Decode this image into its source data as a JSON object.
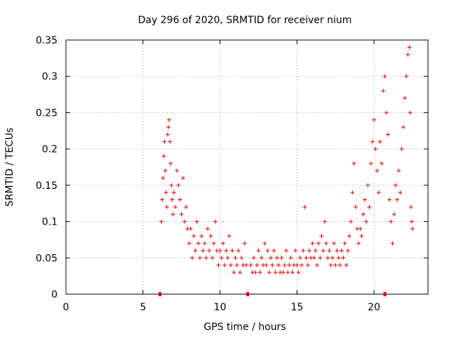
{
  "chart_data": {
    "type": "scatter",
    "title": "Day 296 of 2020, SRMTID for receiver nium",
    "xlabel": "GPS time / hours",
    "ylabel": "SRMTID / TECUs",
    "xlim": [
      0,
      23.5
    ],
    "ylim": [
      0,
      0.35
    ],
    "x_ticks": [
      0,
      5,
      10,
      15,
      20
    ],
    "y_ticks": [
      0,
      0.05,
      0.1,
      0.15,
      0.2,
      0.25,
      0.3,
      0.35
    ],
    "x_tick_labels": [
      "0",
      "5",
      "10",
      "15",
      "20"
    ],
    "y_tick_labels": [
      "0",
      "0.05",
      "0.1",
      "0.15",
      "0.2",
      "0.25",
      "0.3",
      "0.35"
    ],
    "grid": true,
    "marker": "+",
    "color": "#e00000",
    "axis_markers_x": [
      6.1,
      11.8,
      20.7
    ],
    "series": [
      {
        "name": "SRMTID",
        "points": [
          [
            6.2,
            0.1
          ],
          [
            6.25,
            0.13
          ],
          [
            6.3,
            0.16
          ],
          [
            6.35,
            0.19
          ],
          [
            6.4,
            0.21
          ],
          [
            6.45,
            0.17
          ],
          [
            6.5,
            0.14
          ],
          [
            6.55,
            0.12
          ],
          [
            6.6,
            0.22
          ],
          [
            6.65,
            0.23
          ],
          [
            6.7,
            0.24
          ],
          [
            6.75,
            0.21
          ],
          [
            6.8,
            0.18
          ],
          [
            6.85,
            0.15
          ],
          [
            6.9,
            0.13
          ],
          [
            6.95,
            0.11
          ],
          [
            7.0,
            0.14
          ],
          [
            7.1,
            0.12
          ],
          [
            7.2,
            0.17
          ],
          [
            7.3,
            0.15
          ],
          [
            7.4,
            0.13
          ],
          [
            7.5,
            0.11
          ],
          [
            7.6,
            0.16
          ],
          [
            7.7,
            0.1
          ],
          [
            7.8,
            0.12
          ],
          [
            7.9,
            0.09
          ],
          [
            8.0,
            0.07
          ],
          [
            8.1,
            0.09
          ],
          [
            8.2,
            0.05
          ],
          [
            8.3,
            0.08
          ],
          [
            8.4,
            0.06
          ],
          [
            8.5,
            0.1
          ],
          [
            8.6,
            0.07
          ],
          [
            8.7,
            0.05
          ],
          [
            8.8,
            0.08
          ],
          [
            8.9,
            0.06
          ],
          [
            9.0,
            0.07
          ],
          [
            9.1,
            0.05
          ],
          [
            9.2,
            0.09
          ],
          [
            9.3,
            0.06
          ],
          [
            9.4,
            0.08
          ],
          [
            9.5,
            0.05
          ],
          [
            9.6,
            0.07
          ],
          [
            9.7,
            0.1
          ],
          [
            9.8,
            0.06
          ],
          [
            9.9,
            0.04
          ],
          [
            10.0,
            0.06
          ],
          [
            10.1,
            0.05
          ],
          [
            10.2,
            0.07
          ],
          [
            10.3,
            0.04
          ],
          [
            10.4,
            0.06
          ],
          [
            10.5,
            0.05
          ],
          [
            10.6,
            0.08
          ],
          [
            10.7,
            0.04
          ],
          [
            10.8,
            0.06
          ],
          [
            10.9,
            0.03
          ],
          [
            11.0,
            0.05
          ],
          [
            11.1,
            0.04
          ],
          [
            11.2,
            0.06
          ],
          [
            11.3,
            0.03
          ],
          [
            11.4,
            0.05
          ],
          [
            11.5,
            0.04
          ],
          [
            11.6,
            0.07
          ],
          [
            11.7,
            0.04
          ],
          [
            12.0,
            0.04
          ],
          [
            12.1,
            0.03
          ],
          [
            12.2,
            0.05
          ],
          [
            12.3,
            0.03
          ],
          [
            12.4,
            0.04
          ],
          [
            12.5,
            0.06
          ],
          [
            12.6,
            0.03
          ],
          [
            12.7,
            0.05
          ],
          [
            12.8,
            0.04
          ],
          [
            12.9,
            0.07
          ],
          [
            13.0,
            0.04
          ],
          [
            13.1,
            0.06
          ],
          [
            13.2,
            0.03
          ],
          [
            13.3,
            0.05
          ],
          [
            13.4,
            0.04
          ],
          [
            13.5,
            0.06
          ],
          [
            13.6,
            0.03
          ],
          [
            13.7,
            0.05
          ],
          [
            13.8,
            0.04
          ],
          [
            13.9,
            0.03
          ],
          [
            14.0,
            0.05
          ],
          [
            14.1,
            0.03
          ],
          [
            14.2,
            0.04
          ],
          [
            14.3,
            0.06
          ],
          [
            14.4,
            0.03
          ],
          [
            14.5,
            0.04
          ],
          [
            14.6,
            0.05
          ],
          [
            14.7,
            0.03
          ],
          [
            14.8,
            0.04
          ],
          [
            14.9,
            0.06
          ],
          [
            15.0,
            0.04
          ],
          [
            15.1,
            0.03
          ],
          [
            15.2,
            0.05
          ],
          [
            15.3,
            0.04
          ],
          [
            15.4,
            0.06
          ],
          [
            15.5,
            0.12
          ],
          [
            15.6,
            0.05
          ],
          [
            15.7,
            0.04
          ],
          [
            15.8,
            0.06
          ],
          [
            15.9,
            0.05
          ],
          [
            16.0,
            0.07
          ],
          [
            16.1,
            0.05
          ],
          [
            16.2,
            0.06
          ],
          [
            16.3,
            0.04
          ],
          [
            16.4,
            0.07
          ],
          [
            16.5,
            0.05
          ],
          [
            16.6,
            0.08
          ],
          [
            16.7,
            0.06
          ],
          [
            16.8,
            0.1
          ],
          [
            16.9,
            0.07
          ],
          [
            17.0,
            0.05
          ],
          [
            17.1,
            0.06
          ],
          [
            17.2,
            0.04
          ],
          [
            17.3,
            0.05
          ],
          [
            17.4,
            0.07
          ],
          [
            17.5,
            0.04
          ],
          [
            17.6,
            0.06
          ],
          [
            17.7,
            0.05
          ],
          [
            17.8,
            0.04
          ],
          [
            17.9,
            0.06
          ],
          [
            18.0,
            0.05
          ],
          [
            18.1,
            0.07
          ],
          [
            18.2,
            0.04
          ],
          [
            18.3,
            0.06
          ],
          [
            18.4,
            0.08
          ],
          [
            18.5,
            0.1
          ],
          [
            18.6,
            0.14
          ],
          [
            18.7,
            0.18
          ],
          [
            18.8,
            0.12
          ],
          [
            18.9,
            0.09
          ],
          [
            19.0,
            0.07
          ],
          [
            19.1,
            0.09
          ],
          [
            19.2,
            0.08
          ],
          [
            19.3,
            0.11
          ],
          [
            19.4,
            0.13
          ],
          [
            19.5,
            0.1
          ],
          [
            19.6,
            0.15
          ],
          [
            19.7,
            0.12
          ],
          [
            19.8,
            0.18
          ],
          [
            19.9,
            0.21
          ],
          [
            20.0,
            0.24
          ],
          [
            20.1,
            0.2
          ],
          [
            20.2,
            0.17
          ],
          [
            20.3,
            0.14
          ],
          [
            20.4,
            0.21
          ],
          [
            20.5,
            0.18
          ],
          [
            20.6,
            0.28
          ],
          [
            20.7,
            0.3
          ],
          [
            20.8,
            0.25
          ],
          [
            20.9,
            0.22
          ],
          [
            21.0,
            0.13
          ],
          [
            21.1,
            0.1
          ],
          [
            21.2,
            0.07
          ],
          [
            21.3,
            0.11
          ],
          [
            21.4,
            0.15
          ],
          [
            21.5,
            0.13
          ],
          [
            21.6,
            0.17
          ],
          [
            21.7,
            0.14
          ],
          [
            21.8,
            0.2
          ],
          [
            21.9,
            0.23
          ],
          [
            22.0,
            0.27
          ],
          [
            22.1,
            0.3
          ],
          [
            22.2,
            0.33
          ],
          [
            22.3,
            0.34
          ],
          [
            22.35,
            0.25
          ],
          [
            22.4,
            0.12
          ],
          [
            22.45,
            0.1
          ],
          [
            22.5,
            0.09
          ]
        ]
      }
    ]
  }
}
